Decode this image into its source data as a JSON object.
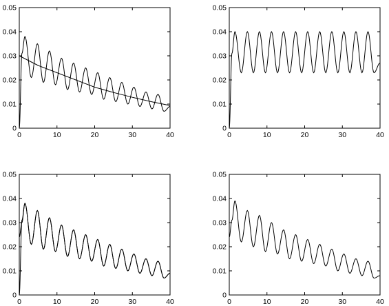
{
  "chart_data": [
    {
      "type": "line",
      "xlim": [
        0,
        40
      ],
      "ylim": [
        0,
        0.05
      ],
      "xticks": [
        0,
        10,
        20,
        30,
        40
      ],
      "yticks": [
        0,
        0.01,
        0.02,
        0.03,
        0.04,
        0.05
      ],
      "xtick_labels": [
        "0",
        "10",
        "20",
        "30",
        "40"
      ],
      "ytick_labels": [
        "0",
        "0.01",
        "0.02",
        "0.03",
        "0.04",
        "0.05"
      ],
      "grid": false,
      "series": [
        {
          "x": [
            0,
            0.7,
            1.5,
            3.2,
            4.8,
            6.4,
            8.0,
            9.6,
            11.2,
            12.8,
            14.4,
            16.0,
            17.6,
            19.2,
            20.8,
            22.4,
            24.0,
            25.6,
            27.2,
            28.8,
            30.4,
            32.0,
            33.6,
            35.2,
            36.8,
            38.4,
            40
          ],
          "y": [
            0,
            0.031,
            0.038,
            0.021,
            0.035,
            0.019,
            0.032,
            0.018,
            0.029,
            0.016,
            0.027,
            0.015,
            0.025,
            0.014,
            0.023,
            0.012,
            0.021,
            0.011,
            0.019,
            0.01,
            0.017,
            0.009,
            0.015,
            0.008,
            0.014,
            0.007,
            0.009
          ]
        },
        {
          "x": [
            0,
            5,
            10,
            15,
            20,
            25,
            30,
            35,
            40
          ],
          "y": [
            0.03,
            0.026,
            0.023,
            0.02,
            0.017,
            0.0148,
            0.0128,
            0.011,
            0.0094
          ]
        }
      ]
    },
    {
      "type": "line",
      "xlim": [
        0,
        40
      ],
      "ylim": [
        0,
        0.05
      ],
      "xticks": [
        0,
        10,
        20,
        30,
        40
      ],
      "yticks": [
        0,
        0.01,
        0.02,
        0.03,
        0.04,
        0.05
      ],
      "xtick_labels": [
        "0",
        "10",
        "20",
        "30",
        "40"
      ],
      "ytick_labels": [
        "0",
        "0.01",
        "0.02",
        "0.03",
        "0.04",
        "0.05"
      ],
      "grid": false,
      "series": [
        {
          "x": [
            0,
            0.7,
            1.5,
            3.2,
            4.8,
            6.4,
            8.0,
            9.6,
            11.2,
            12.8,
            14.4,
            16.0,
            17.6,
            19.2,
            20.8,
            22.4,
            24.0,
            25.6,
            27.2,
            28.8,
            30.4,
            32.0,
            33.6,
            35.2,
            36.8,
            38.4,
            40
          ],
          "y": [
            0,
            0.031,
            0.04,
            0.023,
            0.04,
            0.023,
            0.04,
            0.023,
            0.04,
            0.023,
            0.04,
            0.023,
            0.04,
            0.023,
            0.04,
            0.023,
            0.04,
            0.023,
            0.04,
            0.023,
            0.04,
            0.023,
            0.04,
            0.023,
            0.04,
            0.023,
            0.027
          ]
        }
      ]
    },
    {
      "type": "line",
      "xlim": [
        0,
        40
      ],
      "ylim": [
        0,
        0.05
      ],
      "xticks": [
        0,
        10,
        20,
        30,
        40
      ],
      "yticks": [
        0,
        0.01,
        0.02,
        0.03,
        0.04,
        0.05
      ],
      "xtick_labels": [
        "0",
        "10",
        "20",
        "30",
        "40"
      ],
      "ytick_labels": [
        "0",
        "0.01",
        "0.02",
        "0.03",
        "0.04",
        "0.05"
      ],
      "grid": false,
      "series": [
        {
          "x": [
            0,
            0.7,
            1.5,
            3.2,
            4.8,
            6.4,
            8.0,
            9.6,
            11.2,
            12.8,
            14.4,
            16.0,
            17.6,
            19.2,
            20.8,
            22.4,
            24.0,
            25.6,
            27.2,
            28.8,
            30.4,
            32.0,
            33.6,
            35.2,
            36.8,
            38.4,
            40
          ],
          "y": [
            0,
            0.031,
            0.038,
            0.021,
            0.035,
            0.019,
            0.032,
            0.018,
            0.029,
            0.016,
            0.027,
            0.015,
            0.025,
            0.014,
            0.023,
            0.012,
            0.021,
            0.011,
            0.019,
            0.01,
            0.017,
            0.009,
            0.015,
            0.008,
            0.014,
            0.007,
            0.009
          ]
        },
        {
          "x": [
            0,
            0.7,
            1.5,
            3.2,
            4.8,
            6.4,
            8.0,
            9.6,
            11.2,
            12.8,
            14.4,
            16.0,
            17.6,
            19.2,
            20.8,
            22.4,
            24.0,
            25.6,
            27.2,
            28.8,
            30.4,
            32.0,
            33.6,
            35.2,
            36.8,
            38.4,
            40
          ],
          "y": [
            0.024,
            0.03,
            0.038,
            0.021,
            0.035,
            0.019,
            0.032,
            0.018,
            0.029,
            0.016,
            0.027,
            0.015,
            0.025,
            0.014,
            0.023,
            0.012,
            0.021,
            0.011,
            0.019,
            0.01,
            0.017,
            0.009,
            0.015,
            0.008,
            0.014,
            0.007,
            0.009
          ]
        }
      ]
    },
    {
      "type": "line",
      "xlim": [
        0,
        40
      ],
      "ylim": [
        0,
        0.05
      ],
      "xticks": [
        0,
        10,
        20,
        30,
        40
      ],
      "yticks": [
        0,
        0.01,
        0.02,
        0.03,
        0.04,
        0.05
      ],
      "xtick_labels": [
        "0",
        "10",
        "20",
        "30",
        "40"
      ],
      "ytick_labels": [
        "0",
        "0.01",
        "0.02",
        "0.03",
        "0.04",
        "0.05"
      ],
      "grid": false,
      "series": [
        {
          "x": [
            0,
            0.7,
            1.5,
            3.2,
            4.8,
            6.4,
            8.0,
            9.6,
            11.2,
            12.8,
            14.4,
            16.0,
            17.6,
            19.2,
            20.8,
            22.4,
            24.0,
            25.6,
            27.2,
            28.8,
            30.4,
            32.0,
            33.6,
            35.2,
            36.8,
            38.4,
            40
          ],
          "y": [
            0.024,
            0.031,
            0.039,
            0.022,
            0.035,
            0.02,
            0.033,
            0.018,
            0.03,
            0.017,
            0.027,
            0.015,
            0.025,
            0.014,
            0.023,
            0.013,
            0.021,
            0.012,
            0.019,
            0.01,
            0.017,
            0.009,
            0.015,
            0.008,
            0.014,
            0.007,
            0.008
          ]
        }
      ]
    }
  ]
}
